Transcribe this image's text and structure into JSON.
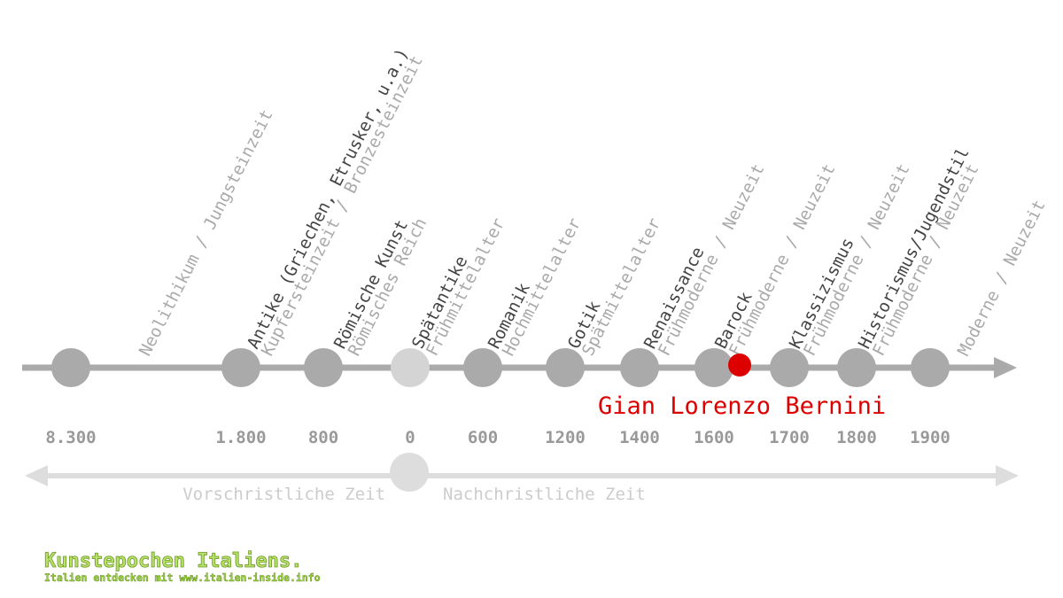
{
  "timeline": {
    "epochs": [
      {
        "subtitle": "Neolithikum / Jungsteinzeit",
        "year": "8.300"
      },
      {
        "name": "Antike (Griechen, Etrusker, u.a.)",
        "subtitle": "Kupfersteinzeit / Bronzesteinzeit",
        "year": "1.800"
      },
      {
        "name": "Römische Kunst",
        "subtitle": "Römisches Reich",
        "year": "800"
      },
      {
        "name": "Spätantike",
        "subtitle": "Frühmittelalter",
        "year": "0"
      },
      {
        "name": "Romanik",
        "subtitle": "Hochmittelalter",
        "year": "600"
      },
      {
        "name": "Gotik",
        "subtitle": "Spätmittelalter",
        "year": "1200"
      },
      {
        "name": "Renaissance",
        "subtitle": "Frühmoderne / Neuzeit",
        "year": "1400"
      },
      {
        "name": "Barock",
        "subtitle": "Frühmoderne / Neuzeit",
        "year": "1600"
      },
      {
        "name": "Klassizismus",
        "subtitle": "Frühmoderne / Neuzeit",
        "year": "1700"
      },
      {
        "name": "Historismus/Jugendstil",
        "subtitle": "Frühmoderne / Neuzeit",
        "year": "1800"
      },
      {
        "subtitle": "Moderne / Neuzeit",
        "year": "1900"
      }
    ],
    "highlight": "Gian Lorenzo Bernini",
    "era_before": "Vorschristliche Zeit",
    "era_after": "Nachchristliche Zeit"
  },
  "footer": {
    "title": "Kunstepochen Italiens.",
    "subtitle": "Italien entdecken mit www.italien-inside.info"
  }
}
